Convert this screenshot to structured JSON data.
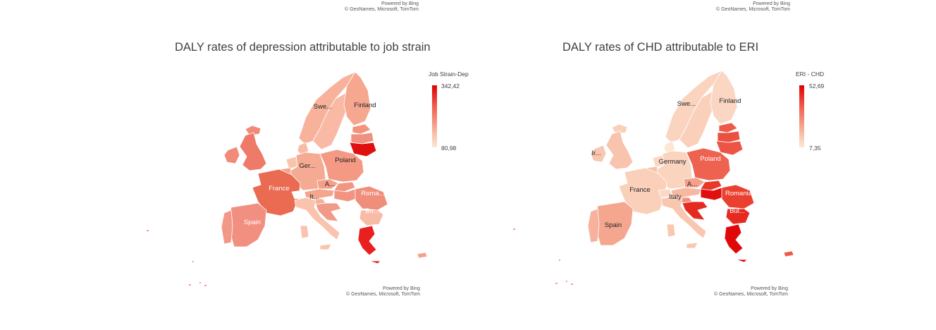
{
  "top_attribution": {
    "left": {
      "line1": "Powered by Bing",
      "line2": "© GeoNames, Microsoft, TomTom"
    },
    "right": {
      "line1": "Powered by Bing",
      "line2": "© GeoNames, Microsoft, TomTom"
    }
  },
  "maps": [
    {
      "title": "DALY rates of depression attributable to job strain",
      "legend": {
        "title": "Job Strain-Dep",
        "max": "342,42",
        "min": "80,98"
      },
      "labels": {
        "sweden": "Swe...",
        "finland": "Finland",
        "germany": "Ger...",
        "poland": "Poland",
        "france": "France",
        "austria": "A...",
        "italy": "It...",
        "romania": "Roma...",
        "bulgaria": "Bu...",
        "spain": "Spain"
      },
      "colors": {
        "uk": "#ee7a68",
        "ireland": "#f18a78",
        "iceland": "#f18a78",
        "norway": "#f8b29c",
        "sweden": "#f9b9a4",
        "finland": "#f6a78f",
        "estonia": "#f4937c",
        "latvia": "#f09080",
        "lithuania": "#e01010",
        "denmark": "#f7bca6",
        "netherlands": "#f9c4ad",
        "belgium": "#f6a48c",
        "germany": "#f5ab93",
        "poland": "#f49a84",
        "france": "#ea6a52",
        "switzerland": "#ffffff",
        "czechia": "#f4a088",
        "slovakia": "#f29682",
        "austria": "#f4a58e",
        "hungary": "#f29482",
        "slovenia": "#f6b09a",
        "croatia": "#f29a88",
        "romania": "#f08e7c",
        "bulgaria": "#f8bca6",
        "italy": "#f9c3ad",
        "spain": "#f19080",
        "portugal": "#f29888",
        "greece": "#e82020",
        "cyprus": "#f3a08c"
      },
      "attribution": {
        "line1": "Powered by Bing",
        "line2": "© GeoNames, Microsoft, TomTom"
      }
    },
    {
      "title": "DALY rates of CHD attributable to ERI",
      "legend": {
        "title": "ERI - CHD",
        "max": "52,69",
        "min": "7,35"
      },
      "labels": {
        "ireland": "Ir...",
        "sweden": "Swe...",
        "finland": "Finland",
        "germany": "Germany",
        "poland": "Poland",
        "france": "France",
        "austria": "A...",
        "italy": "Italy",
        "romania": "Romania",
        "bulgaria": "Bul...",
        "spain": "Spain"
      },
      "colors": {
        "uk": "#f8c4ad",
        "ireland": "#f9c6b0",
        "iceland": "#fad0ba",
        "norway": "#fbd4bf",
        "sweden": "#fad0ba",
        "finland": "#fbd6c2",
        "estonia": "#ed5a48",
        "latvia": "#eb5040",
        "lithuania": "#ec5546",
        "denmark": "#fde7d2",
        "netherlands": "#fbd8c4",
        "belgium": "#f8c1aa",
        "germany": "#fad4bf",
        "poland": "#ee6250",
        "france": "#fad0ba",
        "switzerland": "#fbd8c4",
        "czechia": "#f5a08a",
        "slovakia": "#e83828",
        "austria": "#f7b8a2",
        "hungary": "#e01010",
        "slovenia": "#f19080",
        "croatia": "#e52a20",
        "romania": "#ea4030",
        "bulgaria": "#e62a20",
        "italy": "#f9c6b0",
        "spain": "#f4a68f",
        "portugal": "#f6b29c",
        "greece": "#e00808",
        "cyprus": "#ee5a48"
      },
      "attribution": {
        "line1": "Powered by Bing",
        "line2": "© GeoNames, Microsoft, TomTom"
      }
    }
  ]
}
